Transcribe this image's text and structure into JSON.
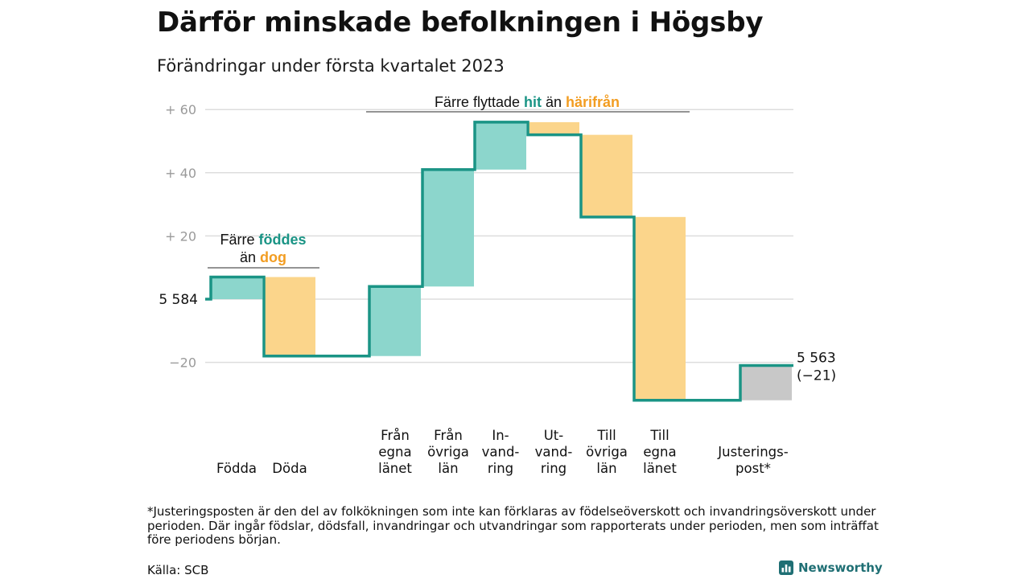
{
  "title": "Därför minskade befolkningen i Högsby",
  "subtitle": "Förändringar under första kvartalet 2023",
  "footnote": "*Justeringsposten är den del av folkökningen som inte kan förklaras av födelseöverskott och invandringsöverskott under perioden. Där ingår födslar, dödsfall, invandringar och utvandringar som rapporterats under perioden, men som inträffat före periodens början.",
  "source": "Källa: SCB",
  "brand": {
    "name": "Newsworthy",
    "logo_icon": "newsworthy-logo-icon"
  },
  "colors": {
    "positive": "#8cd6cc",
    "negative": "#fbd58b",
    "adjustment": "#c8c8c8",
    "line": "#1a9485",
    "highlight_positive": "#1a9485",
    "highlight_negative": "#f29d22",
    "grid": "#dddddd",
    "tick": "#9a9a9a"
  },
  "chart_data": {
    "type": "waterfall",
    "start_label": "5 584",
    "end_label": "5 563",
    "end_change_label": "(−21)",
    "y_tick_labels": [
      "+ 60",
      "+ 40",
      "+ 20",
      "−20"
    ],
    "y_ticks": [
      60,
      40,
      20,
      -20
    ],
    "ylim": [
      -33,
      62
    ],
    "grid": true,
    "categories": [
      {
        "label": "Födda",
        "value": 7,
        "kind": "positive"
      },
      {
        "label": "Döda",
        "value": -25,
        "kind": "negative"
      },
      {
        "label": "Från egna länet",
        "value": 22,
        "kind": "positive"
      },
      {
        "label": "Från övriga län",
        "value": 37,
        "kind": "positive"
      },
      {
        "label": "In-vand-ring",
        "value": 15,
        "kind": "positive"
      },
      {
        "label": "Ut-vand-ring",
        "value": -4,
        "kind": "negative"
      },
      {
        "label": "Till övriga län",
        "value": -26,
        "kind": "negative"
      },
      {
        "label": "Till egna länet",
        "value": -58,
        "kind": "negative"
      },
      {
        "label": "Justerings-post*",
        "value": 11,
        "kind": "adjustment"
      }
    ],
    "category_label_lines": [
      [
        "Födda"
      ],
      [
        "Döda"
      ],
      [
        "Från",
        "egna",
        "länet"
      ],
      [
        "Från",
        "övriga",
        "län"
      ],
      [
        "In-",
        "vand-",
        "ring"
      ],
      [
        "Ut-",
        "vand-",
        "ring"
      ],
      [
        "Till",
        "övriga",
        "län"
      ],
      [
        "Till",
        "egna",
        "länet"
      ],
      [
        "Justerings-",
        "post*"
      ]
    ],
    "annotations": [
      {
        "text": [
          "Färre ",
          "föddes"
        ],
        "text2": [
          "än ",
          "dog"
        ]
      },
      {
        "text": [
          "Färre flyttade ",
          "hit",
          " än ",
          "härifrån"
        ]
      }
    ]
  }
}
